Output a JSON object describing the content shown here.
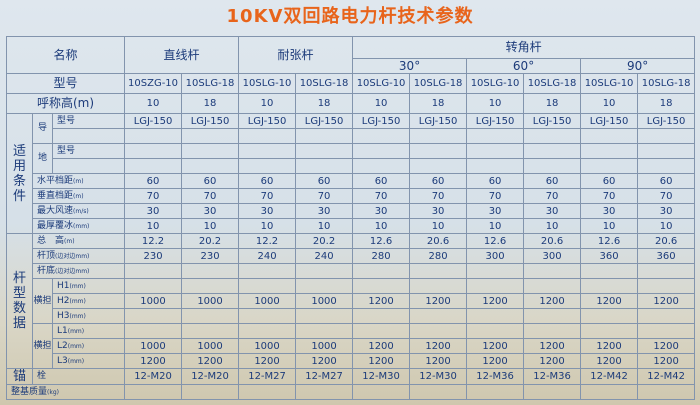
{
  "title": "10KV双回路电力杆技术参数",
  "table": {
    "header": {
      "name": "名称",
      "groups": [
        "直线杆",
        "耐张杆",
        "转角杆"
      ],
      "angles": [
        "30°",
        "60°",
        "90°"
      ],
      "model_label": "型号",
      "models": [
        "10SZG-10",
        "10SLG-18",
        "10SLG-10",
        "10SLG-18",
        "10SLG-10",
        "10SLG-18",
        "10SLG-10",
        "10SLG-18",
        "10SLG-10",
        "10SLG-18"
      ],
      "height_label": "呼称高(m)",
      "heights": [
        10,
        18,
        10,
        18,
        10,
        18,
        10,
        18,
        10,
        18
      ]
    },
    "sections": [
      {
        "label": "适用条件",
        "rows": [
          {
            "sub": "导",
            "rows": [
              {
                "label": "型号",
                "values": [
                  "LGJ-150",
                  "LGJ-150",
                  "LGJ-150",
                  "LGJ-150",
                  "LGJ-150",
                  "LGJ-150",
                  "LGJ-150",
                  "LGJ-150",
                  "LGJ-150",
                  "LGJ-150"
                ]
              },
              {
                "label": null
              }
            ]
          },
          {
            "sub": "地",
            "rows": [
              {
                "label": "型号"
              },
              {
                "label": null
              }
            ]
          },
          {
            "label": "水平档距",
            "unit": "(m)",
            "values": [
              60,
              60,
              60,
              60,
              60,
              60,
              60,
              60,
              60,
              60
            ]
          },
          {
            "label": "垂直档距",
            "unit": "(m)",
            "values": [
              70,
              70,
              70,
              70,
              70,
              70,
              70,
              70,
              70,
              70
            ]
          },
          {
            "label": "最大风速",
            "unit": "(m/s)",
            "values": [
              30,
              30,
              30,
              30,
              30,
              30,
              30,
              30,
              30,
              30
            ]
          },
          {
            "label": "最厚覆冰",
            "unit": "(mm)",
            "values": [
              10,
              10,
              10,
              10,
              10,
              10,
              10,
              10,
              10,
              10
            ]
          }
        ]
      },
      {
        "label": "杆型数据",
        "rows": [
          {
            "label": "总　高",
            "unit": "(m)",
            "values": [
              12.2,
              20.2,
              12.2,
              20.2,
              12.6,
              20.6,
              12.6,
              20.6,
              12.6,
              20.6
            ]
          },
          {
            "label": "杆顶",
            "unit": "(边对边mm)",
            "values": [
              230,
              230,
              240,
              240,
              280,
              280,
              300,
              300,
              360,
              360
            ]
          },
          {
            "label": "杆底",
            "unit": "(边对边mm)"
          },
          {
            "sub": "横担",
            "rows": [
              {
                "label": "H1",
                "unit": "(mm)"
              },
              {
                "label": "H2",
                "unit": "(mm)",
                "values": [
                  1000,
                  1000,
                  1000,
                  1000,
                  1200,
                  1200,
                  1200,
                  1200,
                  1200,
                  1200
                ]
              },
              {
                "label": "H3",
                "unit": "(mm)"
              }
            ]
          },
          {
            "sub": "横担",
            "rows": [
              {
                "label": "L1",
                "unit": "(mm)"
              },
              {
                "label": "L2",
                "unit": "(mm)",
                "values": [
                  1000,
                  1000,
                  1000,
                  1000,
                  1200,
                  1200,
                  1200,
                  1200,
                  1200,
                  1200
                ]
              },
              {
                "label": "L3",
                "unit": "(mm)",
                "values": [
                  1200,
                  1200,
                  1200,
                  1200,
                  1200,
                  1200,
                  1200,
                  1200,
                  1200,
                  1200
                ]
              }
            ]
          }
        ]
      },
      {
        "label": "锚",
        "rows": [
          {
            "label": "栓",
            "values": [
              "12-M20",
              "12-M20",
              "12-M27",
              "12-M27",
              "12-M30",
              "12-M30",
              "12-M36",
              "12-M36",
              "12-M42",
              "12-M42"
            ]
          }
        ]
      },
      {
        "rows": [
          {
            "label": "整基质量",
            "unit": "(kg)"
          }
        ]
      }
    ]
  }
}
